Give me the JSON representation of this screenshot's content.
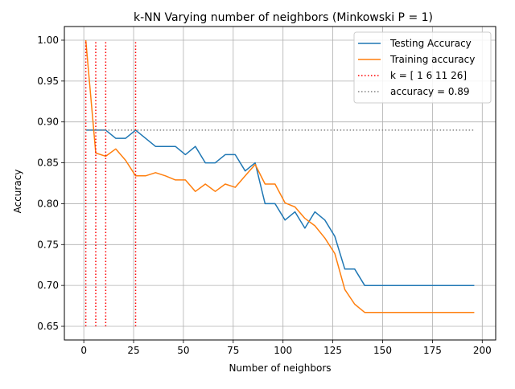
{
  "chart_data": {
    "type": "line",
    "title": "k-NN Varying number of neighbors (Minkowski P = 1)",
    "xlabel": "Number of neighbors",
    "ylabel": "Accuracy",
    "xlim": [
      -9.75,
      206.75
    ],
    "ylim": [
      0.6333,
      1.0167
    ],
    "xticks": [
      0,
      25,
      50,
      75,
      100,
      125,
      150,
      175,
      200
    ],
    "yticks": [
      0.65,
      0.7,
      0.75,
      0.8,
      0.85,
      0.9,
      0.95,
      1.0
    ],
    "ytick_labels": [
      "0.65",
      "0.70",
      "0.75",
      "0.80",
      "0.85",
      "0.90",
      "0.95",
      "1.00"
    ],
    "grid": true,
    "legend_position": "top-right",
    "x": [
      1,
      6,
      11,
      16,
      21,
      26,
      31,
      36,
      41,
      46,
      51,
      56,
      61,
      66,
      71,
      76,
      81,
      86,
      91,
      96,
      101,
      106,
      111,
      116,
      121,
      126,
      131,
      136,
      141,
      146,
      151,
      156,
      161,
      166,
      171,
      176,
      181,
      186,
      191,
      196
    ],
    "series": [
      {
        "name": "Testing Accuracy",
        "color": "#1f77b4",
        "style": "solid",
        "values": [
          0.89,
          0.89,
          0.89,
          0.88,
          0.88,
          0.89,
          0.88,
          0.87,
          0.87,
          0.87,
          0.86,
          0.87,
          0.85,
          0.85,
          0.86,
          0.86,
          0.84,
          0.85,
          0.8,
          0.8,
          0.78,
          0.79,
          0.77,
          0.79,
          0.78,
          0.76,
          0.72,
          0.72,
          0.7,
          0.7,
          0.7,
          0.7,
          0.7,
          0.7,
          0.7,
          0.7,
          0.7,
          0.7,
          0.7,
          0.7
        ]
      },
      {
        "name": "Training accuracy",
        "color": "#ff7f0e",
        "style": "solid",
        "values": [
          1.0,
          0.862,
          0.858,
          0.867,
          0.853,
          0.834,
          0.834,
          0.838,
          0.834,
          0.829,
          0.829,
          0.815,
          0.824,
          0.815,
          0.824,
          0.82,
          0.834,
          0.848,
          0.824,
          0.824,
          0.801,
          0.796,
          0.782,
          0.773,
          0.758,
          0.739,
          0.695,
          0.677,
          0.667,
          0.667,
          0.667,
          0.667,
          0.667,
          0.667,
          0.667,
          0.667,
          0.667,
          0.667,
          0.667,
          0.667
        ]
      }
    ],
    "vlines": {
      "name": "k = [ 1  6 11 26]",
      "color": "#ff0000",
      "style": "dotted",
      "x": [
        1,
        6,
        11,
        26
      ],
      "ymin": 0.65,
      "ymax": 1.0
    },
    "hline": {
      "name": "accuracy = 0.89",
      "color": "#808080",
      "style": "dotted",
      "y": 0.89,
      "xmin": 1,
      "xmax": 196
    }
  }
}
